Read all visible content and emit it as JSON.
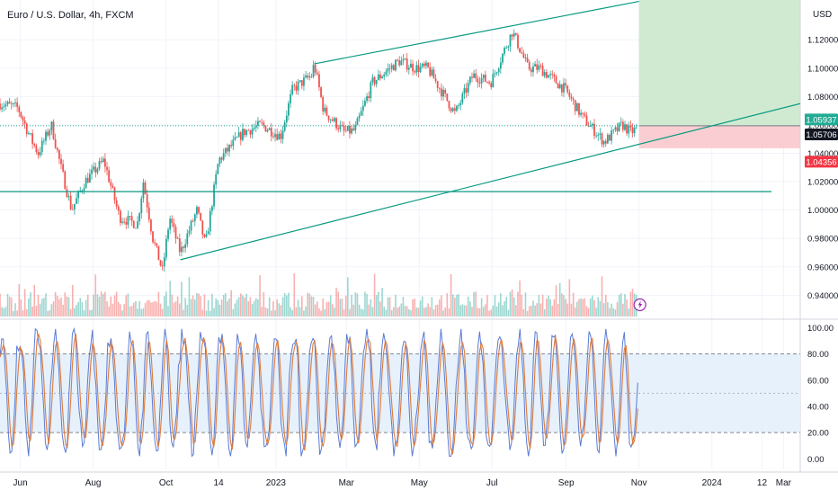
{
  "symbol": {
    "title": "Euro / U.S. Dollar, 4h, FXCM"
  },
  "currency": "USD",
  "colors": {
    "up": "#26a69a",
    "down": "#ef5350",
    "trendline": "#089981",
    "profit_zone": "#c8e6c9",
    "loss_zone": "#f8c8cc",
    "stoch_k": "#5b7bd5",
    "stoch_d": "#e07b39",
    "band_fill": "#e3f0fb",
    "grid": "#f0f3fa",
    "axis_text": "#131722",
    "volume_up": "#26a69a",
    "volume_down": "#ef5350"
  },
  "price_badges": [
    {
      "label": "1.05937",
      "value": 1.05937,
      "bg": "#22ab94",
      "fg": "#ffffff"
    },
    {
      "label": "1.05706",
      "value": 1.05706,
      "bg": "#131722",
      "fg": "#ffffff"
    },
    {
      "label": "1.04356",
      "value": 1.04356,
      "bg": "#f23645",
      "fg": "#ffffff"
    }
  ],
  "flash_icon": "lightning-icon",
  "chart_data": [
    {
      "type": "candlestick",
      "title": "Euro / U.S. Dollar, 4h, FXCM",
      "ylabel": "USD",
      "ylim": [
        0.925,
        1.148
      ],
      "y_ticks": [
        "0.94000",
        "0.96000",
        "0.98000",
        "1.00000",
        "1.02000",
        "1.04000",
        "1.06000",
        "1.08000",
        "1.10000",
        "1.12000"
      ],
      "y_tick_values": [
        0.94,
        0.96,
        0.98,
        1.0,
        1.02,
        1.04,
        1.06,
        1.08,
        1.1,
        1.12
      ],
      "x_ticks": [
        {
          "label": "Jun",
          "x": "2022-06-01"
        },
        {
          "label": "Aug",
          "x": "2022-08-01"
        },
        {
          "label": "Oct",
          "x": "2022-10-01"
        },
        {
          "label": "14",
          "x": "2022-11-14"
        },
        {
          "label": "2023",
          "x": "2023-01-01"
        },
        {
          "label": "Mar",
          "x": "2023-03-01"
        },
        {
          "label": "May",
          "x": "2023-05-01"
        },
        {
          "label": "Jul",
          "x": "2023-07-01"
        },
        {
          "label": "Sep",
          "x": "2023-09-01"
        },
        {
          "label": "Nov",
          "x": "2023-11-01"
        },
        {
          "label": "2024",
          "x": "2024-01-01"
        },
        {
          "label": "12",
          "x": "2024-02-12"
        },
        {
          "label": "Mar",
          "x": "2024-03-01"
        }
      ],
      "x_range": [
        "2022-05-15",
        "2024-03-15"
      ],
      "price_path": [
        [
          "2022-05-15",
          1.075
        ],
        [
          "2022-05-30",
          1.072
        ],
        [
          "2022-06-10",
          1.05
        ],
        [
          "2022-06-16",
          1.04
        ],
        [
          "2022-06-27",
          1.06
        ],
        [
          "2022-07-05",
          1.03
        ],
        [
          "2022-07-14",
          1.0
        ],
        [
          "2022-07-25",
          1.02
        ],
        [
          "2022-08-10",
          1.035
        ],
        [
          "2022-08-23",
          0.995
        ],
        [
          "2022-09-07",
          0.99
        ],
        [
          "2022-09-12",
          1.02
        ],
        [
          "2022-09-20",
          0.98
        ],
        [
          "2022-09-28",
          0.957
        ],
        [
          "2022-10-04",
          0.995
        ],
        [
          "2022-10-13",
          0.97
        ],
        [
          "2022-10-27",
          1.0
        ],
        [
          "2022-11-03",
          0.975
        ],
        [
          "2022-11-14",
          1.035
        ],
        [
          "2022-12-05",
          1.055
        ],
        [
          "2022-12-20",
          1.06
        ],
        [
          "2023-01-05",
          1.052
        ],
        [
          "2023-01-15",
          1.085
        ],
        [
          "2023-01-31",
          1.095
        ],
        [
          "2023-02-02",
          1.103
        ],
        [
          "2023-02-10",
          1.07
        ],
        [
          "2023-02-27",
          1.055
        ],
        [
          "2023-03-08",
          1.056
        ],
        [
          "2023-03-23",
          1.09
        ],
        [
          "2023-04-14",
          1.105
        ],
        [
          "2023-04-28",
          1.1
        ],
        [
          "2023-05-08",
          1.1
        ],
        [
          "2023-05-31",
          1.068
        ],
        [
          "2023-06-15",
          1.095
        ],
        [
          "2023-06-30",
          1.09
        ],
        [
          "2023-07-18",
          1.126
        ],
        [
          "2023-07-31",
          1.1
        ],
        [
          "2023-08-10",
          1.1
        ],
        [
          "2023-08-31",
          1.085
        ],
        [
          "2023-09-15",
          1.065
        ],
        [
          "2023-10-03",
          1.048
        ],
        [
          "2023-10-18",
          1.06
        ],
        [
          "2023-10-25",
          1.055
        ],
        [
          "2023-10-31",
          1.057
        ]
      ],
      "horizontal_line": {
        "value": 1.013,
        "from": "2022-05-15",
        "to": "2024-02-20"
      },
      "trendlines": [
        {
          "from": [
            "2023-02-02",
            1.103
          ],
          "to": [
            "2023-11-01",
            1.147
          ]
        },
        {
          "from": [
            "2022-10-13",
            0.965
          ],
          "to": [
            "2024-03-15",
            1.075
          ]
        }
      ],
      "position": {
        "entry": 1.05937,
        "target": 1.148,
        "stop": 1.04356,
        "from": "2023-11-01",
        "to": "2024-03-15"
      },
      "dotted_level": 1.05937,
      "current_price": 1.05706
    },
    {
      "type": "line",
      "ylim": [
        -8,
        103
      ],
      "y_ticks": [
        "0.00",
        "20.00",
        "40.00",
        "60.00",
        "80.00",
        "100.00"
      ],
      "y_tick_values": [
        0,
        20,
        40,
        60,
        80,
        100
      ],
      "bands": {
        "upper": 80,
        "middle": 50,
        "lower": 20
      },
      "series_k_color": "#5b7bd5",
      "series_d_color": "#e07b39",
      "points": 380,
      "x_range": [
        "2022-05-15",
        "2023-10-31"
      ],
      "last_value": 58
    }
  ]
}
